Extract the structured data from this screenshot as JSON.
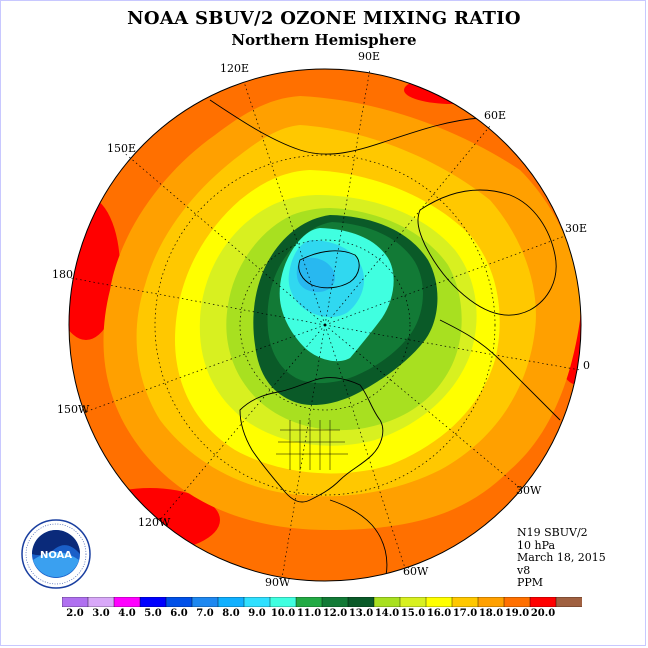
{
  "title": "NOAA SBUV/2 OZONE MIXING RATIO",
  "subtitle": "Northern Hemisphere",
  "longitude_labels": [
    {
      "key": "90E",
      "text": "90E"
    },
    {
      "key": "120E",
      "text": "120E"
    },
    {
      "key": "60E",
      "text": "60E"
    },
    {
      "key": "150E",
      "text": "150E"
    },
    {
      "key": "30E",
      "text": "30E"
    },
    {
      "key": "180",
      "text": "180"
    },
    {
      "key": "0",
      "text": "0"
    },
    {
      "key": "150W",
      "text": "150W"
    },
    {
      "key": "30W",
      "text": "30W"
    },
    {
      "key": "120W",
      "text": "120W"
    },
    {
      "key": "60W",
      "text": "60W"
    },
    {
      "key": "90W",
      "text": "90W"
    }
  ],
  "info": {
    "instrument": "N19 SBUV/2",
    "pressure": "10 hPa",
    "date": "March 18, 2015",
    "version": "v8",
    "units": "PPM"
  },
  "logo_text": "NOAA",
  "colorbar": {
    "ticks": [
      "2.0",
      "3.0",
      "4.0",
      "5.0",
      "6.0",
      "7.0",
      "8.0",
      "9.0",
      "10.0",
      "11.0",
      "12.0",
      "13.0",
      "14.0",
      "15.0",
      "16.0",
      "17.0",
      "18.0",
      "19.0",
      "20.0"
    ],
    "colors": [
      "#b070f0",
      "#d8a8f8",
      "#ff00ff",
      "#0000ff",
      "#0050e8",
      "#1e88f0",
      "#10b0ff",
      "#30e0ff",
      "#40ffe0",
      "#22aa44",
      "#127a36",
      "#0a5a28",
      "#a8e020",
      "#d8f020",
      "#ffff00",
      "#ffc800",
      "#ffa000",
      "#ff7000",
      "#ff0000",
      "#a06040"
    ]
  },
  "map_colors": {
    "lt10": "#40ffe0",
    "c9": "#30d8f0",
    "c8": "#28b8f0",
    "c11": "#22aa44",
    "c12": "#127a36",
    "c13": "#a8e020",
    "c14": "#d8f020",
    "c15": "#ffff00",
    "c16": "#ffc800",
    "c17": "#ffa000",
    "c18": "#ff7000",
    "c19": "#ff0000"
  }
}
